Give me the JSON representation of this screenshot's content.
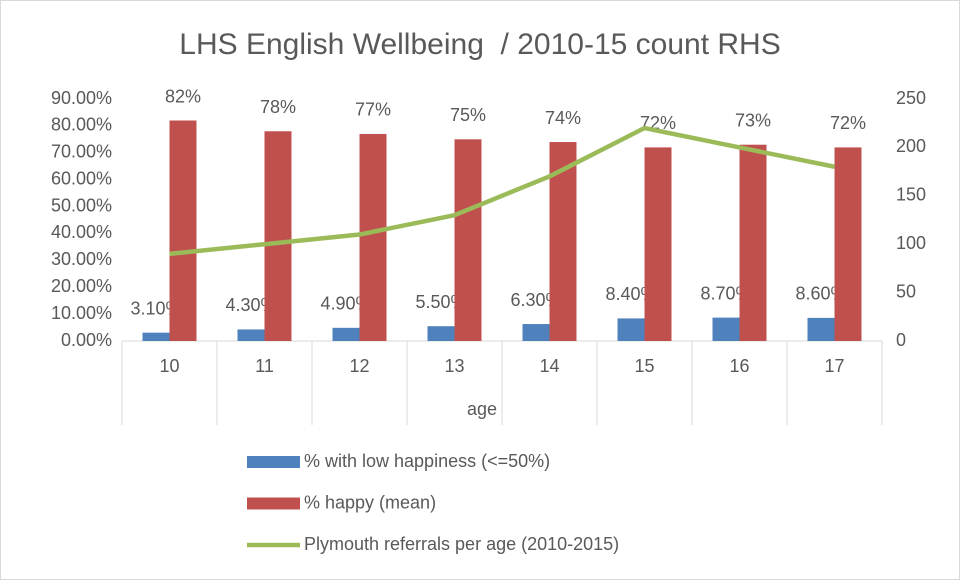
{
  "chart_data": {
    "type": "bar_line",
    "title": "LHS English Wellbeing  / 2010-15 count RHS",
    "x_label": "age",
    "categories": [
      "10",
      "11",
      "12",
      "13",
      "14",
      "15",
      "16",
      "17"
    ],
    "series": [
      {
        "name": "% with low happiness (<=50%)",
        "color": "#4f81bd",
        "type": "bar",
        "axis": "y",
        "values": [
          3.1,
          4.3,
          4.9,
          5.5,
          6.3,
          8.4,
          8.7,
          8.6
        ],
        "value_labels": [
          "3.10%",
          "4.30%",
          "4.90%",
          "5.50%",
          "6.30%",
          "8.40%",
          "8.70%",
          "8.60%"
        ]
      },
      {
        "name": "% happy (mean)",
        "color": "#c0504d",
        "type": "bar",
        "axis": "y",
        "values": [
          82,
          78,
          77,
          75,
          74,
          72,
          73,
          72
        ],
        "value_labels": [
          "82%",
          "78%",
          "77%",
          "75%",
          "74%",
          "72%",
          "73%",
          "72%"
        ]
      },
      {
        "name": "Plymouth referrals per age (2010-2015)",
        "color": "#9bbb59",
        "type": "line",
        "axis": "y2",
        "values": [
          90,
          100,
          110,
          130,
          170,
          220,
          200,
          180
        ]
      }
    ],
    "ylim": [
      0,
      90
    ],
    "yticks": [
      {
        "value": 0,
        "label": "0.00%"
      },
      {
        "value": 10,
        "label": "10.00%"
      },
      {
        "value": 20,
        "label": "20.00%"
      },
      {
        "value": 30,
        "label": "30.00%"
      },
      {
        "value": 40,
        "label": "40.00%"
      },
      {
        "value": 50,
        "label": "50.00%"
      },
      {
        "value": 60,
        "label": "60.00%"
      },
      {
        "value": 70,
        "label": "70.00%"
      },
      {
        "value": 80,
        "label": "80.00%"
      },
      {
        "value": 90,
        "label": "90.00%"
      }
    ],
    "y2lim": [
      0,
      250
    ],
    "y2ticks": [
      0,
      50,
      100,
      150,
      200,
      250
    ],
    "legend": "bottom"
  }
}
